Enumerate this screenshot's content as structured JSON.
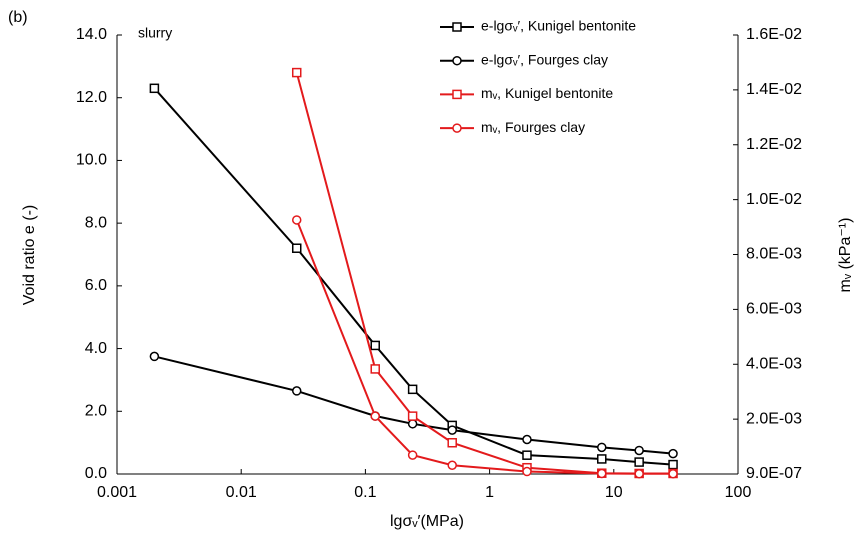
{
  "chart_data": {
    "type": "line",
    "panel_label": "(b)",
    "annotation": "slurry",
    "xlabel": "lgσᵥ′(MPa)",
    "ylabel": "Void ratio e (-)",
    "y2label": "mᵥ (kPa⁻¹)",
    "xscale": "log",
    "x": [
      0.002,
      0.028,
      0.12,
      0.24,
      0.5,
      2,
      8,
      16,
      30
    ],
    "xlim": [
      0.001,
      100
    ],
    "xticks": [
      0.001,
      0.01,
      0.1,
      1,
      10,
      100
    ],
    "ylim": [
      0,
      14
    ],
    "yticks": [
      {
        "value": 0,
        "label": "0.0"
      },
      {
        "value": 2,
        "label": "2.0"
      },
      {
        "value": 4,
        "label": "4.0"
      },
      {
        "value": 6,
        "label": "6.0"
      },
      {
        "value": 8,
        "label": "8.0"
      },
      {
        "value": 10,
        "label": "10.0"
      },
      {
        "value": 12,
        "label": "12.0"
      },
      {
        "value": 14,
        "label": "14.0"
      }
    ],
    "y2lim": [
      9e-07,
      0.016
    ],
    "y2ticks": [
      {
        "value": 9e-07,
        "label": "9.0E-07"
      },
      {
        "value": 0.002,
        "label": "2.0E-03"
      },
      {
        "value": 0.004,
        "label": "4.0E-03"
      },
      {
        "value": 0.006,
        "label": "6.0E-03"
      },
      {
        "value": 0.008,
        "label": "8.0E-03"
      },
      {
        "value": 0.01,
        "label": "1.0E-02"
      },
      {
        "value": 0.012,
        "label": "1.2E-02"
      },
      {
        "value": 0.014,
        "label": "1.4E-02"
      },
      {
        "value": 0.016,
        "label": "1.6E-02"
      }
    ],
    "legend": "upper right",
    "series": [
      {
        "name": "e-lgσᵥ′, Kunigel bentonite",
        "color": "#000000",
        "marker": "square",
        "values": [
          12.3,
          7.2,
          4.1,
          2.7,
          1.55,
          0.6,
          0.48,
          0.38,
          0.3
        ]
      },
      {
        "name": "e-lgσᵥ′, Fourges clay",
        "color": "#000000",
        "marker": "circle",
        "values": [
          3.75,
          2.65,
          1.85,
          1.6,
          1.4,
          1.1,
          0.85,
          0.75,
          0.65
        ]
      },
      {
        "name": "mᵥ, Kunigel bentonite",
        "color": "#e31a1c",
        "marker": "square",
        "axis": "y2",
        "values": [
          null,
          0.01463,
          0.00383,
          0.00211,
          0.00114,
          0.00023,
          3e-05,
          2e-05,
          2e-05
        ]
      },
      {
        "name": "mᵥ, Fourges clay",
        "color": "#e31a1c",
        "marker": "circle",
        "axis": "y2",
        "values": [
          null,
          0.00926,
          0.00211,
          0.00069,
          0.00032,
          9e-05,
          2e-05,
          1e-05,
          1e-05
        ]
      }
    ]
  }
}
